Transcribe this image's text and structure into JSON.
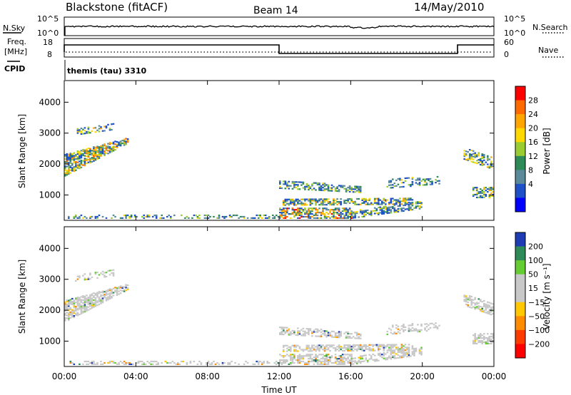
{
  "header": {
    "station": "Blackstone (fitACF)",
    "beam": "Beam 14",
    "date": "14/May/2010"
  },
  "noise_panel": {
    "left_label": "N.Sky",
    "right_label": "N.Search",
    "left_ticks": [
      "10^5",
      "10^0"
    ],
    "right_ticks": [
      "10^5",
      "10^0"
    ]
  },
  "freq_panel": {
    "left_label_line1": "Freq.",
    "left_label_line2": "[MHz]",
    "left_ticks": [
      "18",
      "8"
    ],
    "right_label": "Nave",
    "right_ticks": [
      "60",
      "0"
    ],
    "cpid_label": "CPID",
    "mode_text": "themis (tau) 3310"
  },
  "chart_data": [
    {
      "type": "heatmap",
      "name": "power",
      "ylabel": "Slant Range [km]",
      "yticks": [
        1000,
        2000,
        3000,
        4000
      ],
      "ylim": [
        180,
        4700
      ],
      "xlim": [
        0,
        24
      ],
      "colorbar_label": "Power [dB]",
      "colorbar_ticks": [
        "28",
        "24",
        "20",
        "16",
        "12",
        "8",
        "4"
      ],
      "colorbar_colors": [
        "#ff0000",
        "#ff6a00",
        "#ffa500",
        "#ffd800",
        "#9acd32",
        "#2e8b57",
        "#5a8a9a",
        "#1e50c8",
        "#0000ff"
      ]
    },
    {
      "type": "heatmap",
      "name": "velocity",
      "ylabel": "Slant Range [km]",
      "yticks": [
        1000,
        2000,
        3000,
        4000
      ],
      "ylim": [
        180,
        4700
      ],
      "xlim": [
        0,
        24
      ],
      "colorbar_label": "Velocity [m s⁻¹]",
      "colorbar_ticks": [
        "200",
        "100",
        "50",
        "15",
        "−15",
        "−50",
        "−100",
        "−200"
      ],
      "colorbar_colors": [
        "#1e3cb4",
        "#2e8b57",
        "#66cc33",
        "#c8c8c8",
        "#c8c8c8",
        "#ffc800",
        "#ff8c00",
        "#ff3c00",
        "#ff0000"
      ]
    }
  ],
  "time_axis": {
    "ticks": [
      "00:00",
      "04:00",
      "08:00",
      "12:00",
      "16:00",
      "20:00",
      "00:00"
    ],
    "label": "Time UT"
  }
}
